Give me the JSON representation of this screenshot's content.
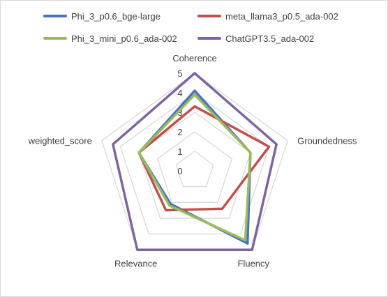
{
  "chart_data": {
    "type": "radar",
    "title": "",
    "axes": [
      "Coherence",
      "Groundedness",
      "Fluency",
      "Relevance",
      "weighted_score"
    ],
    "rlim": [
      0,
      5
    ],
    "ticks": [
      "0",
      "1",
      "2",
      "3",
      "4",
      "5"
    ],
    "grid": true,
    "legend_position": "top",
    "series": [
      {
        "name": "Phi_3_p0.6_bge-large",
        "color": "#4472c4",
        "values": [
          4.1,
          3.0,
          4.6,
          2.1,
          3.0
        ]
      },
      {
        "name": "meta_llama3_p0.5_ada-002",
        "color": "#c0504d",
        "values": [
          3.3,
          4.0,
          2.4,
          2.5,
          3.0
        ]
      },
      {
        "name": "Phi_3_mini_p0.6_ada-002",
        "color": "#9bbb59",
        "values": [
          3.9,
          3.0,
          4.4,
          2.2,
          3.0
        ]
      },
      {
        "name": "ChatGPT3.5_ada-002",
        "color": "#8064a2",
        "values": [
          5.0,
          4.4,
          5.0,
          5.0,
          4.4
        ]
      }
    ]
  }
}
